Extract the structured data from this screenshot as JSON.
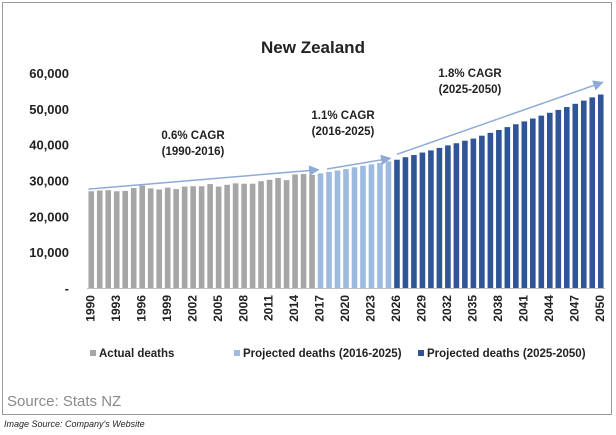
{
  "chart_data": {
    "type": "bar",
    "title": "New Zealand",
    "xlabel": "",
    "ylabel": "",
    "ylim": [
      0,
      60000
    ],
    "yticks": [
      "-",
      "10,000",
      "20,000",
      "30,000",
      "40,000",
      "50,000",
      "60,000"
    ],
    "categories": [
      "1990",
      "1991",
      "1992",
      "1993",
      "1994",
      "1995",
      "1996",
      "1997",
      "1998",
      "1999",
      "2000",
      "2001",
      "2002",
      "2003",
      "2004",
      "2005",
      "2006",
      "2007",
      "2008",
      "2009",
      "2010",
      "2011",
      "2012",
      "2013",
      "2014",
      "2015",
      "2016",
      "2017",
      "2018",
      "2019",
      "2020",
      "2021",
      "2022",
      "2023",
      "2024",
      "2025",
      "2026",
      "2027",
      "2028",
      "2029",
      "2030",
      "2031",
      "2032",
      "2033",
      "2034",
      "2035",
      "2036",
      "2037",
      "2038",
      "2039",
      "2040",
      "2041",
      "2042",
      "2043",
      "2044",
      "2045",
      "2046",
      "2047",
      "2048",
      "2049",
      "2050"
    ],
    "tick_labels": [
      "1990",
      "1993",
      "1996",
      "1999",
      "2002",
      "2005",
      "2008",
      "2011",
      "2014",
      "2017",
      "2020",
      "2023",
      "2026",
      "2029",
      "2032",
      "2035",
      "2038",
      "2041",
      "2044",
      "2047",
      "2050"
    ],
    "values": [
      27000,
      27200,
      27300,
      27000,
      27100,
      27900,
      28600,
      27800,
      27500,
      28000,
      27600,
      28300,
      28400,
      28400,
      29000,
      28300,
      28800,
      29200,
      29100,
      29100,
      29800,
      30200,
      30700,
      30100,
      31700,
      31800,
      31600,
      32000,
      32400,
      32800,
      33200,
      33700,
      34100,
      34500,
      34900,
      35300,
      35800,
      36500,
      37100,
      37800,
      38400,
      39100,
      39800,
      40400,
      41100,
      41700,
      42500,
      43300,
      44100,
      44900,
      45700,
      46500,
      47300,
      48100,
      48900,
      49700,
      50500,
      51400,
      52300,
      53200,
      54000
    ],
    "series": [
      {
        "name": "Actual deaths",
        "color": "#a6a6a6",
        "start": "1990",
        "end": "2016"
      },
      {
        "name": "Projected deaths (2016-2025)",
        "color": "#9dbbe0",
        "start": "2017",
        "end": "2025"
      },
      {
        "name": "Projected deaths (2025-2050)",
        "color": "#2f5597",
        "start": "2026",
        "end": "2050"
      }
    ],
    "annotations": [
      {
        "line1": "0.6% CAGR",
        "line2": "(1990-2016)"
      },
      {
        "line1": "1.1% CAGR",
        "line2": "(2016-2025)"
      },
      {
        "line1": "1.8% CAGR",
        "line2": "(2025-2050)"
      }
    ],
    "grid": false,
    "legend_position": "bottom"
  },
  "source": "Source: Stats NZ",
  "caption": "Image Source: Company's Website"
}
